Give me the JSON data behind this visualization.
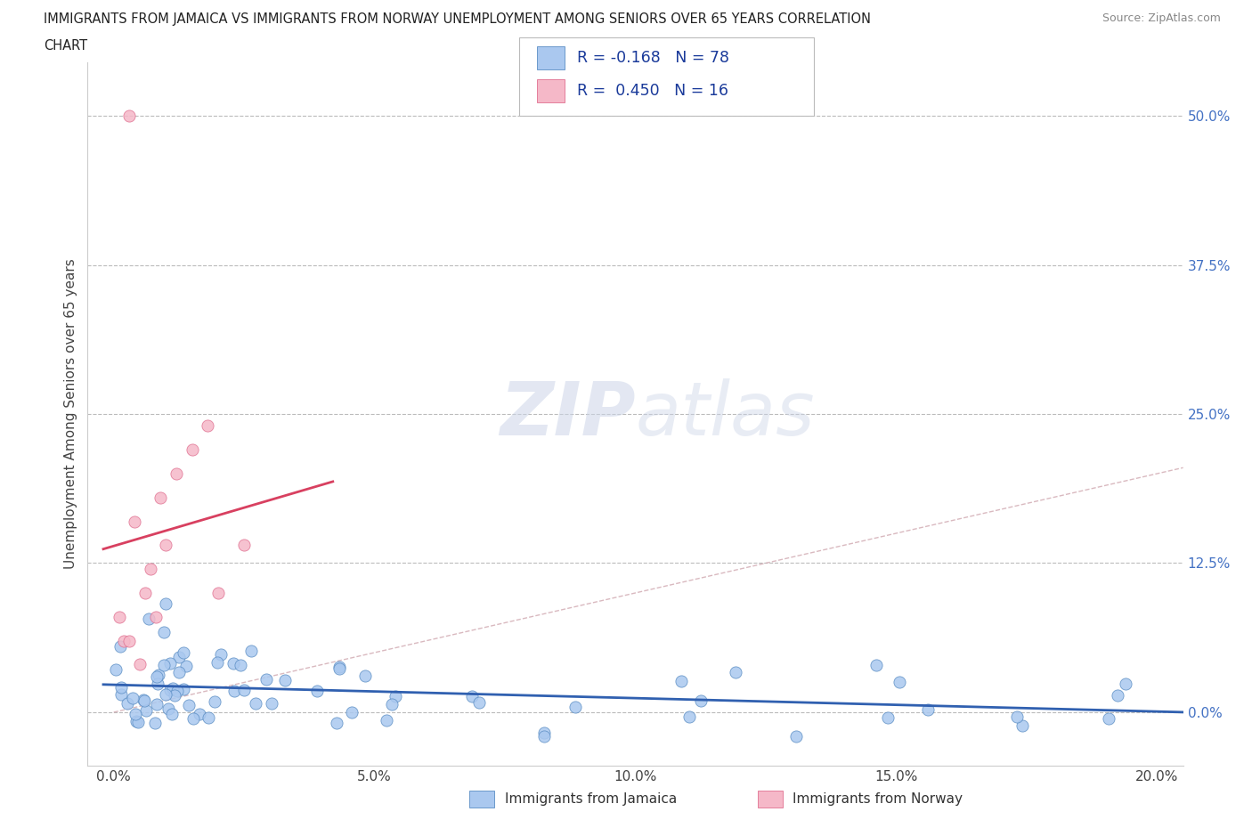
{
  "title_line1": "IMMIGRANTS FROM JAMAICA VS IMMIGRANTS FROM NORWAY UNEMPLOYMENT AMONG SENIORS OVER 65 YEARS CORRELATION",
  "title_line2": "CHART",
  "source": "Source: ZipAtlas.com",
  "ylabel": "Unemployment Among Seniors over 65 years",
  "xlim": [
    -0.005,
    0.205
  ],
  "ylim": [
    -0.045,
    0.545
  ],
  "xticks": [
    0.0,
    0.05,
    0.1,
    0.15,
    0.2
  ],
  "yticks": [
    0.0,
    0.125,
    0.25,
    0.375,
    0.5
  ],
  "xticklabels": [
    "0.0%",
    "5.0%",
    "10.0%",
    "15.0%",
    "20.0%"
  ],
  "yticklabels": [
    "0.0%",
    "12.5%",
    "25.0%",
    "37.5%",
    "50.0%"
  ],
  "jamaica_color": "#aac8ef",
  "norway_color": "#f5b8c8",
  "jamaica_edge_color": "#5b8ec4",
  "norway_edge_color": "#e07090",
  "jamaica_line_color": "#3060b0",
  "norway_line_color": "#d84060",
  "diag_line_color": "#d0a8b0",
  "jamaica_R": -0.168,
  "jamaica_N": 78,
  "norway_R": 0.45,
  "norway_N": 16,
  "legend_label_jamaica": "Immigrants from Jamaica",
  "legend_label_norway": "Immigrants from Norway",
  "watermark_zip": "ZIP",
  "watermark_atlas": "atlas",
  "yticklabel_color": "#4472c4",
  "xticklabel_color": "#444444",
  "ylabel_color": "#444444"
}
